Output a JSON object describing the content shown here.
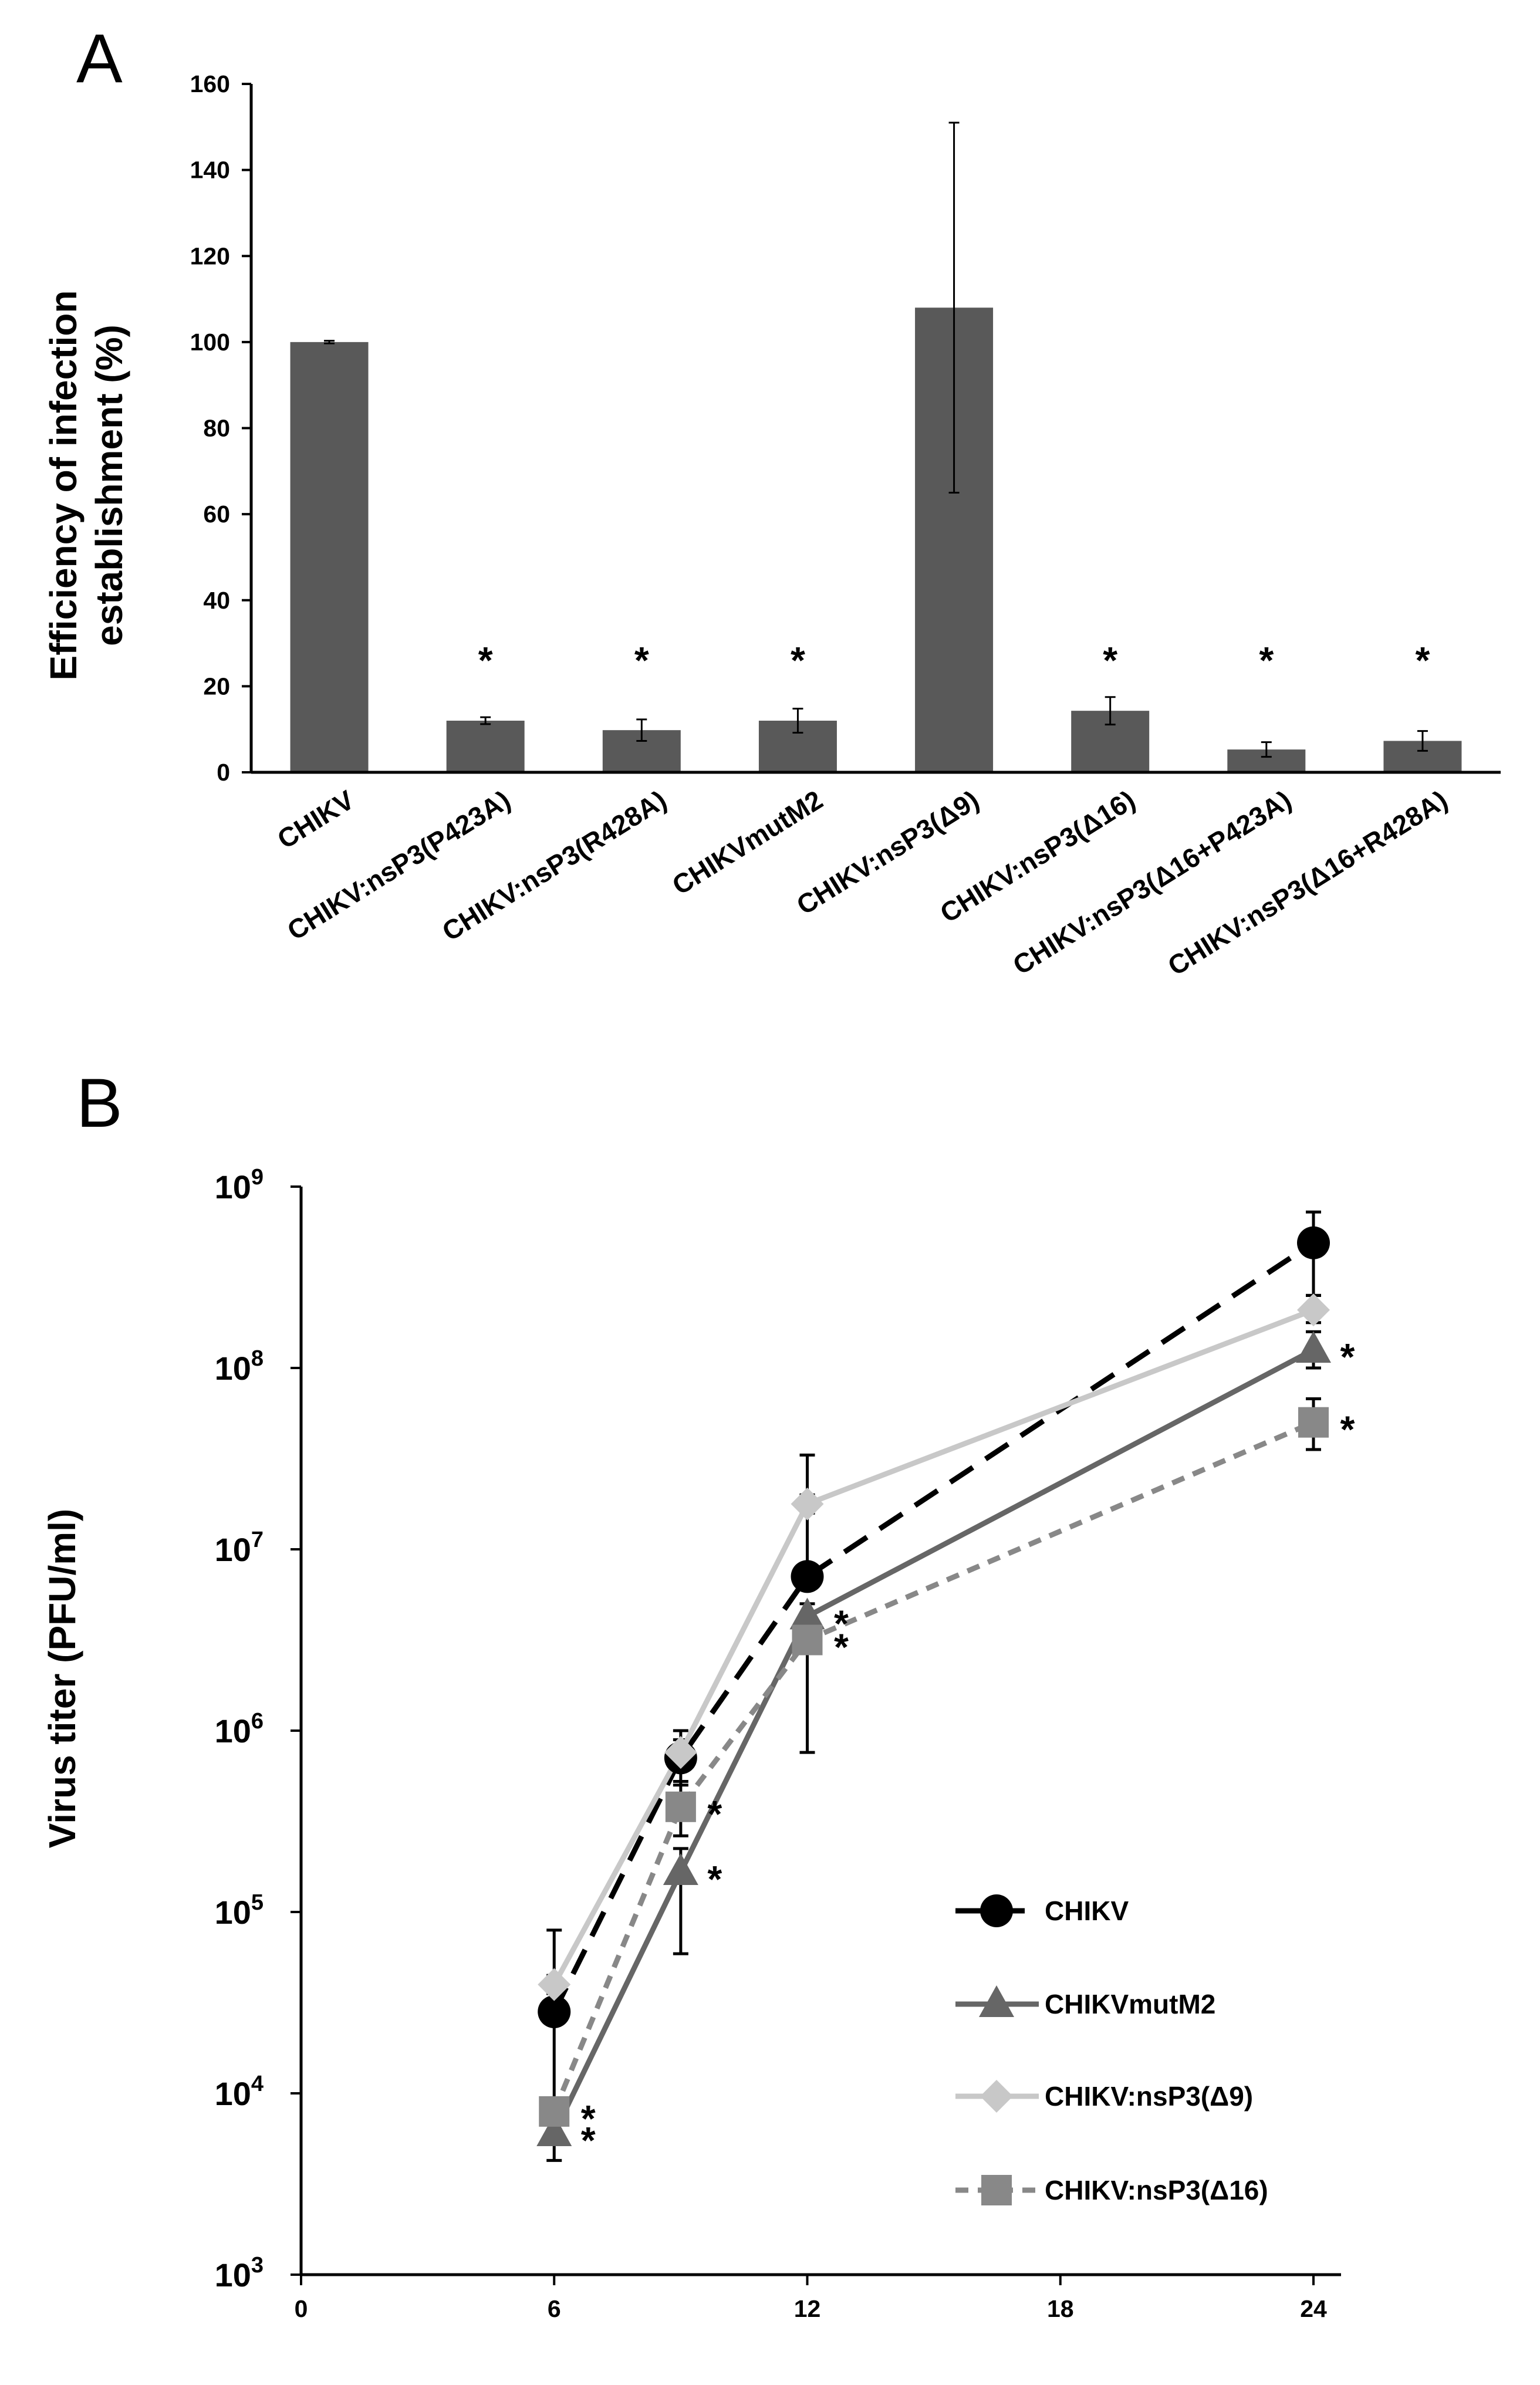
{
  "chart_data": [
    {
      "panel_label": "A",
      "type": "bar",
      "ylabel_line1": "Efficiency of infection",
      "ylabel_line2": "establishment (%)",
      "ylim": [
        0,
        160
      ],
      "yticks": [
        0,
        20,
        40,
        60,
        80,
        100,
        120,
        140,
        160
      ],
      "categories": [
        "CHIKV",
        "CHIKV:nsP3(P423A)",
        "CHIKV:nsP3(R428A)",
        "CHIKVmutM2",
        "CHIKV:nsP3(Δ9)",
        "CHIKV:nsP3(Δ16)",
        "CHIKV:nsP3(Δ16+P423A)",
        "CHIKV:nsP3(Δ16+R428A)"
      ],
      "values": [
        100,
        12,
        9.8,
        12,
        108,
        14.3,
        5.3,
        7.3
      ],
      "errors": [
        0.3,
        0.8,
        2.5,
        2.8,
        43,
        3.2,
        1.7,
        2.3
      ],
      "significance": [
        "",
        "*",
        "*",
        "*",
        "",
        "*",
        "*",
        "*"
      ],
      "bar_color": "#595959"
    },
    {
      "panel_label": "B",
      "type": "line",
      "ylabel": "Virus titer (PFU/ml)",
      "yscale": "log",
      "ylim_exponent": [
        3,
        9
      ],
      "ytick_base": "10",
      "ytick_exponents": [
        "3",
        "4",
        "5",
        "6",
        "7",
        "8",
        "9"
      ],
      "xlim": [
        0,
        24
      ],
      "xticks": [
        0,
        6,
        12,
        18,
        24
      ],
      "x": [
        6,
        9,
        12,
        24
      ],
      "legend_position": "right",
      "series": [
        {
          "name": "CHIKV",
          "color": "#000000",
          "marker": "circle",
          "dash": "long",
          "log10_values": [
            4.45,
            5.85,
            6.85,
            8.69
          ],
          "log10_err_upper": [
            4.9,
            6.0,
            7.52,
            8.86
          ],
          "log10_err_lower": [
            3.8,
            5.7,
            6.8,
            8.4
          ],
          "significance": [
            "",
            "",
            "",
            ""
          ]
        },
        {
          "name": "CHIKVmutM2",
          "color": "#666666",
          "marker": "triangle",
          "dash": "solid",
          "log10_values": [
            3.78,
            5.22,
            6.63,
            8.1
          ],
          "log10_err_upper": [
            3.85,
            5.35,
            6.7,
            8.2
          ],
          "log10_err_lower": [
            3.63,
            4.77,
            6.5,
            8.0
          ],
          "significance": [
            "*",
            "*",
            "*",
            "*"
          ]
        },
        {
          "name": "CHIKV:nsP3(Δ9)",
          "color": "#c8c8c8",
          "marker": "diamond",
          "dash": "solid",
          "log10_values": [
            4.6,
            5.88,
            7.25,
            8.32
          ],
          "log10_err_upper": [
            4.65,
            5.95,
            7.3,
            8.4
          ],
          "log10_err_lower": [
            4.55,
            5.82,
            7.2,
            8.25
          ],
          "significance": [
            "",
            "",
            "",
            ""
          ]
        },
        {
          "name": "CHIKV:nsP3(Δ16)",
          "color": "#888888",
          "marker": "square",
          "dash": "short",
          "log10_values": [
            3.9,
            5.58,
            6.5,
            7.7
          ],
          "log10_err_upper": [
            3.95,
            5.72,
            6.55,
            7.83
          ],
          "log10_err_lower": [
            3.8,
            5.42,
            5.88,
            7.55
          ],
          "significance": [
            "*",
            "*",
            "*",
            "*"
          ]
        }
      ]
    }
  ]
}
